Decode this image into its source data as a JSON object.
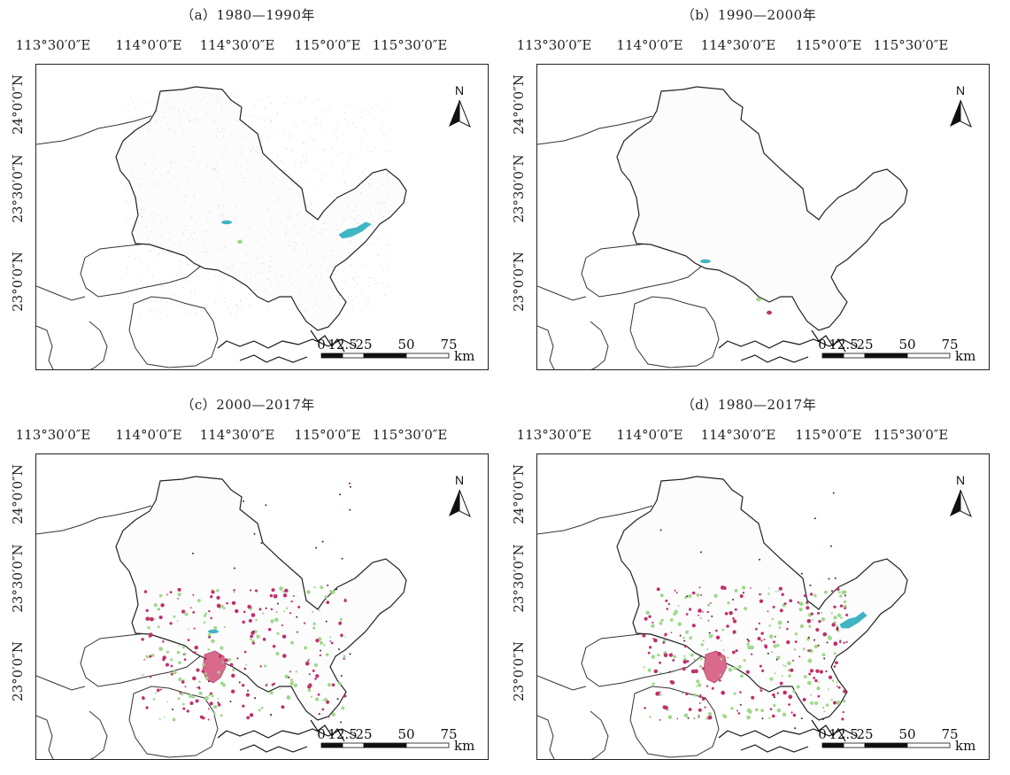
{
  "figure": {
    "panels": [
      {
        "title": "（a）1980—1990年",
        "lon_labels": [
          "113°30′0″E",
          "114°0′0″E",
          "114°30′0″E",
          "115°0′0″E",
          "115°30′0″E"
        ],
        "lat_labels": [
          "24°0′0″N",
          "23°30′0″N",
          "23°0′0″N"
        ],
        "north_label": "N",
        "scale_ticks": [
          "0",
          "12.5",
          "25",
          "50",
          "75"
        ],
        "scale_unit": "km",
        "patches": [
          {
            "kind": "reservoir",
            "color": "#3fb5c4"
          },
          {
            "kind": "small",
            "color": "#9fd88a"
          },
          {
            "kind": "small",
            "color": "#3fb5c4"
          }
        ]
      },
      {
        "title": "（b）1990—2000年",
        "lon_labels": [
          "113°30′0″E",
          "114°0′0″E",
          "114°30′0″E",
          "115°0′0″E",
          "115°30′0″E"
        ],
        "lat_labels": [
          "24°0′0″N",
          "23°30′0″N",
          "23°0′0″N"
        ],
        "north_label": "N",
        "scale_ticks": [
          "0",
          "12.5",
          "25",
          "50",
          "75"
        ],
        "scale_unit": "km",
        "patches": [
          {
            "kind": "small",
            "color": "#3fb5c4"
          },
          {
            "kind": "small",
            "color": "#c0306a"
          },
          {
            "kind": "small",
            "color": "#9fd88a"
          }
        ]
      },
      {
        "title": "（c）2000—2017年",
        "lon_labels": [
          "113°30′0″E",
          "114°0′0″E",
          "114°30′0″E",
          "115°0′0″E",
          "115°30′0″E"
        ],
        "lat_labels": [
          "24°0′0″N",
          "23°30′0″N",
          "23°0′0″N"
        ],
        "north_label": "N",
        "scale_ticks": [
          "0",
          "12.5",
          "25",
          "50",
          "75"
        ],
        "scale_unit": "km",
        "patches": [
          {
            "kind": "urban",
            "color": "#d96a8c"
          },
          {
            "kind": "scatter",
            "color": "#9fd88a"
          },
          {
            "kind": "scatter",
            "color": "#c0306a"
          },
          {
            "kind": "small",
            "color": "#3fb5c4"
          }
        ]
      },
      {
        "title": "（d）1980—2017年",
        "lon_labels": [
          "113°30′0″E",
          "114°0′0″E",
          "114°30′0″E",
          "115°0′0″E",
          "115°30′0″E"
        ],
        "lat_labels": [
          "24°0′0″N",
          "23°30′0″N",
          "23°0′0″N"
        ],
        "north_label": "N",
        "scale_ticks": [
          "0",
          "12.5",
          "25",
          "50",
          "75"
        ],
        "scale_unit": "km",
        "patches": [
          {
            "kind": "urban",
            "color": "#d96a8c"
          },
          {
            "kind": "scatter",
            "color": "#9fd88a"
          },
          {
            "kind": "scatter",
            "color": "#c0306a"
          },
          {
            "kind": "reservoir",
            "color": "#3fb5c4"
          }
        ]
      }
    ]
  }
}
